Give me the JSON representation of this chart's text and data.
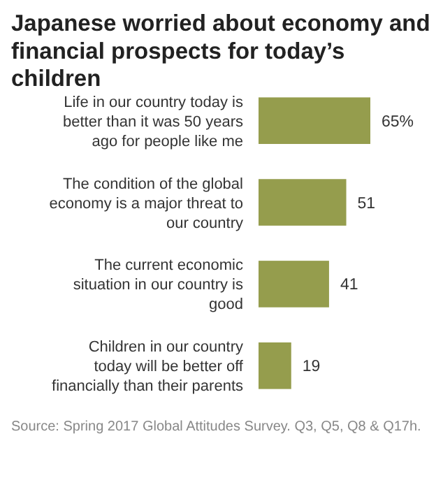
{
  "chart_data": {
    "type": "bar",
    "orientation": "horizontal",
    "title": "Japanese worried about economy and financial prospects for today’s children",
    "categories": [
      "Life in our country today is better than it was 50 years ago for people like me",
      "The condition of the global economy is a major threat to our country",
      "The current economic situation in our country is good",
      "Children in our country today will be better off financially than their parents"
    ],
    "values": [
      65,
      51,
      41,
      19
    ],
    "value_labels": [
      "65%",
      "51",
      "41",
      "19"
    ],
    "color": "#959d4d",
    "annotations": [
      "Source: Spring 2017 Global Attitudes Survey. Q3, Q5, Q8 & Q17h."
    ]
  }
}
